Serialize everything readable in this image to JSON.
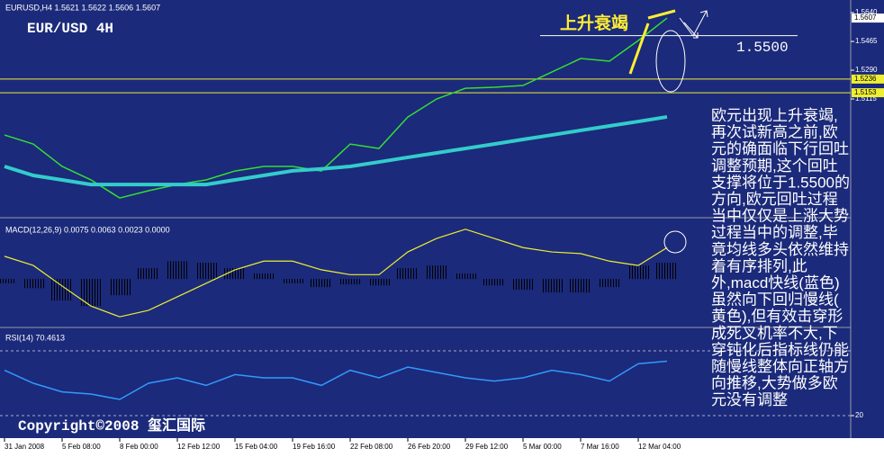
{
  "chart_data": [
    {
      "type": "line",
      "header": "EURUSD,H4  1.5621 1.5622 1.5606 1.5607",
      "title": "EUR/USD 4H",
      "annotation": "上升衰竭",
      "copyright": "Copyright©2008 玺汇国际",
      "ylim": [
        1.4404,
        1.5695
      ],
      "yticks": [
        {
          "value": 1.564,
          "label": "1.5640"
        },
        {
          "value": 1.5465,
          "label": "1.5465"
        },
        {
          "value": 1.529,
          "label": "1.5290"
        },
        {
          "value": 1.5115,
          "label": "1.5115"
        }
      ],
      "price_tags": [
        1.5607,
        1.5236,
        1.5153
      ],
      "level": {
        "value": 1.55,
        "label": "1.5500"
      },
      "series": [
        {
          "color": "#33dd33",
          "values": [
            1.4896,
            1.4841,
            1.4705,
            1.4623,
            1.4513,
            1.4557,
            1.4595,
            1.4623,
            1.4677,
            1.4705,
            1.4705,
            1.4677,
            1.4841,
            1.4814,
            1.5005,
            1.5115,
            1.518,
            1.5186,
            1.5197,
            1.5279,
            1.5361,
            1.5345,
            1.547,
            1.5607
          ]
        },
        {
          "color": "#33cccc",
          "values": [
            1.4705,
            1.465,
            1.4623,
            1.4595,
            1.4595,
            1.4595,
            1.4595,
            1.4595,
            1.4623,
            1.465,
            1.4678,
            1.469,
            1.4705,
            1.4732,
            1.476,
            1.4787,
            1.4814,
            1.4841,
            1.4869,
            1.4896,
            1.4924,
            1.4951,
            1.4978,
            1.5006
          ]
        }
      ],
      "text_block": [
        "欧元出现上升衰竭,",
        "再次试新高之前,欧",
        "元的确面临下行回吐",
        "调整预期,这个回吐",
        "支撑将位于1.5500的",
        "方向,欧元回吐过程",
        "当中仅仅是上涨大势",
        "过程当中的调整,毕",
        "竟均线多头依然维持",
        "着有序排列,此",
        "外,macd快线(蓝色)",
        "虽然向下回归慢线(",
        "黄色),但有效击穿形",
        "成死叉机率不大,下",
        "穿钝化后指标线仍能",
        "随慢线整体向正轴方",
        "向推移,大势做多欧",
        "元没有调整"
      ]
    },
    {
      "type": "macd",
      "header": "MACD(12,26,9) 0.0075 0.0063 0.0023 0.0000",
      "ylim": [
        -0.0083,
        0.011
      ],
      "color_up": "#dd2233",
      "color_down": "#dddd22",
      "values": [
        -0.0008,
        -0.0017,
        -0.004,
        -0.005,
        -0.003,
        0.002,
        0.0033,
        0.003,
        0.002,
        0.001,
        -0.0008,
        -0.0015,
        -0.001,
        -0.0012,
        0.002,
        0.0025,
        0.001,
        -0.0012,
        -0.002,
        -0.0025,
        -0.0025,
        -0.0015,
        0.0025,
        0.003
      ],
      "signal": {
        "color": "#eeee33",
        "values": [
          0.0042,
          0.0025,
          -0.0013,
          -0.005,
          -0.007,
          -0.0058,
          -0.0033,
          -0.0008,
          0.0017,
          0.0033,
          0.0033,
          0.0017,
          0.0008,
          0.0008,
          0.005,
          0.0075,
          0.0092,
          0.0075,
          0.0058,
          0.005,
          0.0047,
          0.0033,
          0.0025,
          0.0058
        ]
      }
    },
    {
      "type": "line",
      "header": "RSI(14) 70.4613",
      "ylim": [
        0,
        100
      ],
      "yticks": [
        20
      ],
      "levels": [
        20,
        80
      ],
      "series": [
        {
          "color": "#3399ff",
          "values": [
            62,
            50,
            42,
            40,
            35,
            50,
            55,
            48,
            58,
            55,
            55,
            48,
            62,
            55,
            65,
            60,
            55,
            52,
            55,
            62,
            58,
            52,
            68,
            70.4613
          ]
        }
      ],
      "categories": [
        "31 Jan 2008",
        null,
        "5 Feb 08:00",
        null,
        "8 Feb 00:00",
        null,
        "12 Feb 12:00",
        null,
        "15 Feb 04:00",
        null,
        "19 Feb 16:00",
        null,
        "22 Feb 08:00",
        null,
        "26 Feb 20:00",
        null,
        "29 Feb 12:00",
        null,
        "5 Mar 00:00",
        null,
        "7 Mar 16:00",
        null,
        "12 Mar 04:00",
        null
      ]
    }
  ]
}
